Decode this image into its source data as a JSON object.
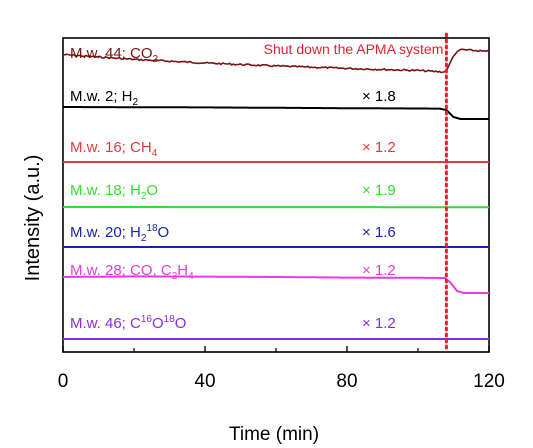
{
  "chart_data": {
    "type": "line",
    "xlabel": "Time (min)",
    "ylabel": "Intensity (a.u.)",
    "xlim": [
      0,
      120
    ],
    "xticks": [
      0,
      40,
      80,
      120
    ],
    "annotation": {
      "text": "Shut down the APMA system",
      "x": 108,
      "color": "#e0242e"
    },
    "series": [
      {
        "label_parts": [
          {
            "t": "M.w. 44; CO"
          },
          {
            "t": "2",
            "sub": true
          }
        ],
        "color": "#7a1212",
        "multiplier": "",
        "points": [
          [
            0,
            0.78
          ],
          [
            10,
            0.7
          ],
          [
            20,
            0.62
          ],
          [
            40,
            0.5
          ],
          [
            60,
            0.4
          ],
          [
            80,
            0.32
          ],
          [
            100,
            0.25
          ],
          [
            107.5,
            0.2
          ],
          [
            108.5,
            0.35
          ],
          [
            110,
            0.75
          ],
          [
            112,
            0.95
          ],
          [
            120,
            0.88
          ]
        ],
        "noisy": true
      },
      {
        "label_parts": [
          {
            "t": "M.w. 2; H"
          },
          {
            "t": "2",
            "sub": true
          }
        ],
        "color": "#000000",
        "multiplier": "× 1.8",
        "points": [
          [
            0,
            0.6
          ],
          [
            40,
            0.58
          ],
          [
            80,
            0.54
          ],
          [
            106,
            0.52
          ],
          [
            108,
            0.45
          ],
          [
            110,
            0.1
          ],
          [
            112,
            0.0
          ],
          [
            120,
            0.0
          ]
        ]
      },
      {
        "label_parts": [
          {
            "t": "M.w. 16; CH"
          },
          {
            "t": "4",
            "sub": true
          }
        ],
        "color": "#e8383d",
        "multiplier": "× 1.2",
        "points": [
          [
            0,
            0.5
          ],
          [
            120,
            0.5
          ]
        ]
      },
      {
        "label_parts": [
          {
            "t": "M.w. 18; H"
          },
          {
            "t": "2",
            "sub": true
          },
          {
            "t": "O"
          }
        ],
        "color": "#2fe02f",
        "multiplier": "× 1.9",
        "points": [
          [
            0,
            0.5
          ],
          [
            120,
            0.48
          ]
        ]
      },
      {
        "label_parts": [
          {
            "t": "M.w. 20; H"
          },
          {
            "t": "2",
            "sub": true
          },
          {
            "t": "18",
            "sup": true
          },
          {
            "t": "O"
          }
        ],
        "color": "#1a23a8",
        "multiplier": "× 1.6",
        "points": [
          [
            0,
            0.5
          ],
          [
            120,
            0.5
          ]
        ]
      },
      {
        "label_parts": [
          {
            "t": "M.w. 28; CO, C"
          },
          {
            "t": "2",
            "sub": true
          },
          {
            "t": "H"
          },
          {
            "t": "4",
            "sub": true
          }
        ],
        "color": "#e83ae0",
        "multiplier": "× 1.2",
        "points": [
          [
            0,
            1.0
          ],
          [
            20,
            1.03
          ],
          [
            40,
            1.02
          ],
          [
            60,
            1.0
          ],
          [
            80,
            0.97
          ],
          [
            100,
            0.96
          ],
          [
            107.5,
            0.95
          ],
          [
            109,
            0.75
          ],
          [
            111,
            0.3
          ],
          [
            113,
            0.2
          ],
          [
            120,
            0.2
          ]
        ]
      },
      {
        "label_parts": [
          {
            "t": "M.w. 46; C"
          },
          {
            "t": "16",
            "sup": true
          },
          {
            "t": "O"
          },
          {
            "t": "18",
            "sup": true
          },
          {
            "t": "O"
          }
        ],
        "color": "#8a2be2",
        "multiplier": "× 1.2",
        "points": [
          [
            0,
            0.5
          ],
          [
            120,
            0.5
          ]
        ]
      }
    ]
  }
}
